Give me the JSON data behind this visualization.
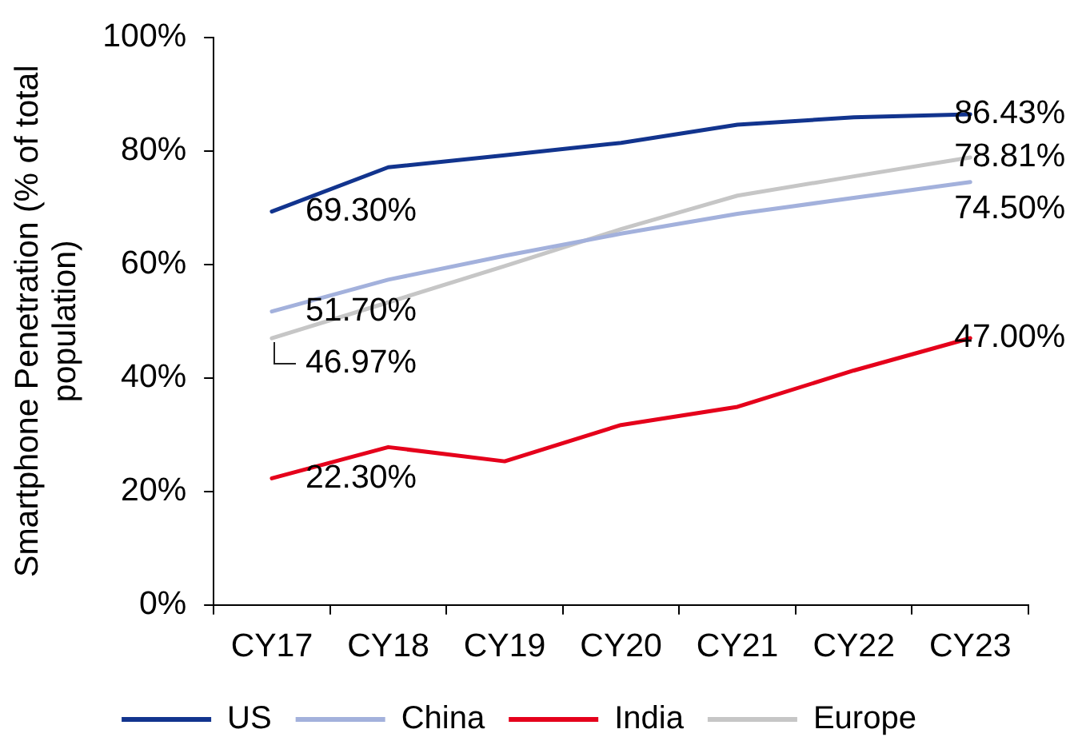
{
  "chart_data": {
    "type": "line",
    "categories": [
      "CY17",
      "CY18",
      "CY19",
      "CY20",
      "CY21",
      "CY22",
      "CY23"
    ],
    "ylabel": "Smartphone Penetration (% of total population)",
    "ylim": [
      0,
      100
    ],
    "yticks": [
      {
        "value": 0,
        "label": "0%"
      },
      {
        "value": 20,
        "label": "20%"
      },
      {
        "value": 40,
        "label": "40%"
      },
      {
        "value": 60,
        "label": "60%"
      },
      {
        "value": 80,
        "label": "80%"
      },
      {
        "value": 100,
        "label": "100%"
      }
    ],
    "grid": false,
    "legend": "bottom",
    "marker": "none",
    "series": [
      {
        "name": "US",
        "color": "#12348e",
        "values": [
          69.3,
          77.1,
          79.2,
          81.4,
          84.6,
          85.9,
          86.43
        ],
        "value_labels": [
          "69.30%",
          null,
          null,
          null,
          null,
          null,
          "86.43%"
        ]
      },
      {
        "name": "China",
        "color": "#a3b1dc",
        "values": [
          51.7,
          57.3,
          61.5,
          65.4,
          68.9,
          71.7,
          74.5
        ],
        "value_labels": [
          "51.70%",
          null,
          null,
          null,
          null,
          null,
          "74.50%"
        ]
      },
      {
        "name": "India",
        "color": "#e5001b",
        "values": [
          22.3,
          27.8,
          25.3,
          31.7,
          34.9,
          41.3,
          47.0
        ],
        "value_labels": [
          "22.30%",
          null,
          null,
          null,
          null,
          null,
          "47.00%"
        ]
      },
      {
        "name": "Europe",
        "color": "#c6c6c6",
        "values": [
          46.97,
          53.3,
          59.7,
          66.2,
          72.1,
          75.5,
          78.81
        ],
        "value_labels": [
          "46.97%",
          null,
          null,
          null,
          null,
          null,
          "78.81%"
        ]
      }
    ]
  }
}
